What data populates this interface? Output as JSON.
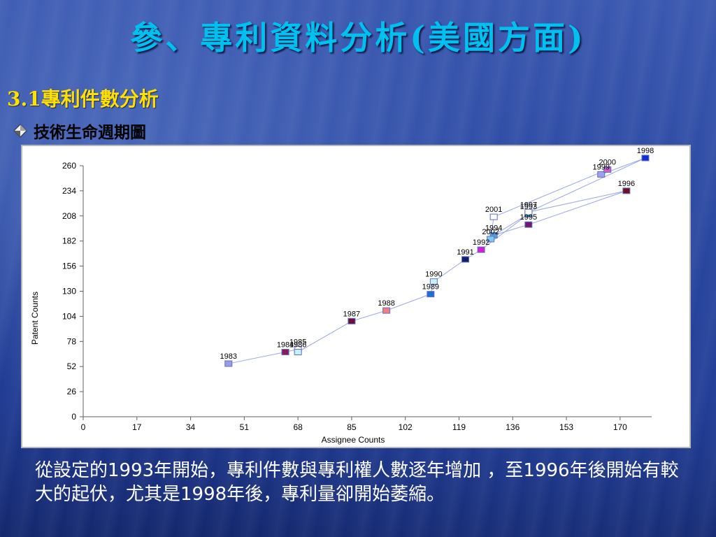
{
  "slide": {
    "title": "參、專利資料分析(美國方面)",
    "section": "3.1專利件數分析",
    "bullet": "技術生命週期圖",
    "caption": "從設定的1993年開始，專利件數與專利權人數逐年增加 ，至1996年後開始有較大的起伏，尤其是1998年後，專利量卻開始萎縮。"
  },
  "chart_data": {
    "type": "line",
    "xlabel": "Assignee Counts",
    "ylabel": "Patent Counts",
    "xlim": [
      0,
      180
    ],
    "ylim": [
      0,
      260
    ],
    "xticks": [
      0,
      17,
      34,
      51,
      68,
      85,
      102,
      119,
      136,
      153,
      170
    ],
    "yticks": [
      0,
      26,
      52,
      78,
      104,
      130,
      156,
      182,
      208,
      234,
      260
    ],
    "grid": false,
    "points": [
      {
        "label": "1983",
        "x": 46,
        "y": 55,
        "color": "#9b9bec"
      },
      {
        "label": "1984",
        "x": 64,
        "y": 67,
        "color": "#8b1a5a"
      },
      {
        "label": "1985",
        "x": 68,
        "y": 70,
        "color": "#ffffff"
      },
      {
        "label": "1986",
        "x": 68,
        "y": 67,
        "color": "#c9f0f8"
      },
      {
        "label": "1987",
        "x": 85,
        "y": 99,
        "color": "#6b0e3a"
      },
      {
        "label": "1988",
        "x": 96,
        "y": 110,
        "color": "#f08080"
      },
      {
        "label": "1989",
        "x": 110,
        "y": 127,
        "color": "#1f6fd0"
      },
      {
        "label": "1990",
        "x": 111,
        "y": 140,
        "color": "#c9f0f8"
      },
      {
        "label": "1991",
        "x": 121,
        "y": 163,
        "color": "#102070"
      },
      {
        "label": "1992",
        "x": 126,
        "y": 173,
        "color": "#d020d0"
      },
      {
        "label": "1993",
        "x": 141,
        "y": 210,
        "color": "#2aa0a0"
      },
      {
        "label": "1994",
        "x": 130,
        "y": 188,
        "color": "#4fa0e0"
      },
      {
        "label": "1995",
        "x": 141,
        "y": 199,
        "color": "#701870"
      },
      {
        "label": "1996",
        "x": 172,
        "y": 234,
        "color": "#701020"
      },
      {
        "label": "1997",
        "x": 141,
        "y": 212,
        "color": "#ffffff"
      },
      {
        "label": "1998",
        "x": 178,
        "y": 268,
        "color": "#1030d0"
      },
      {
        "label": "1999",
        "x": 164,
        "y": 251,
        "color": "#a0a0f0"
      },
      {
        "label": "2000",
        "x": 166,
        "y": 256,
        "color": "#d060d0"
      },
      {
        "label": "2001",
        "x": 130,
        "y": 207,
        "color": "#ffffff"
      },
      {
        "label": "2002",
        "x": 129,
        "y": 184,
        "color": "#80c8f0"
      }
    ]
  }
}
